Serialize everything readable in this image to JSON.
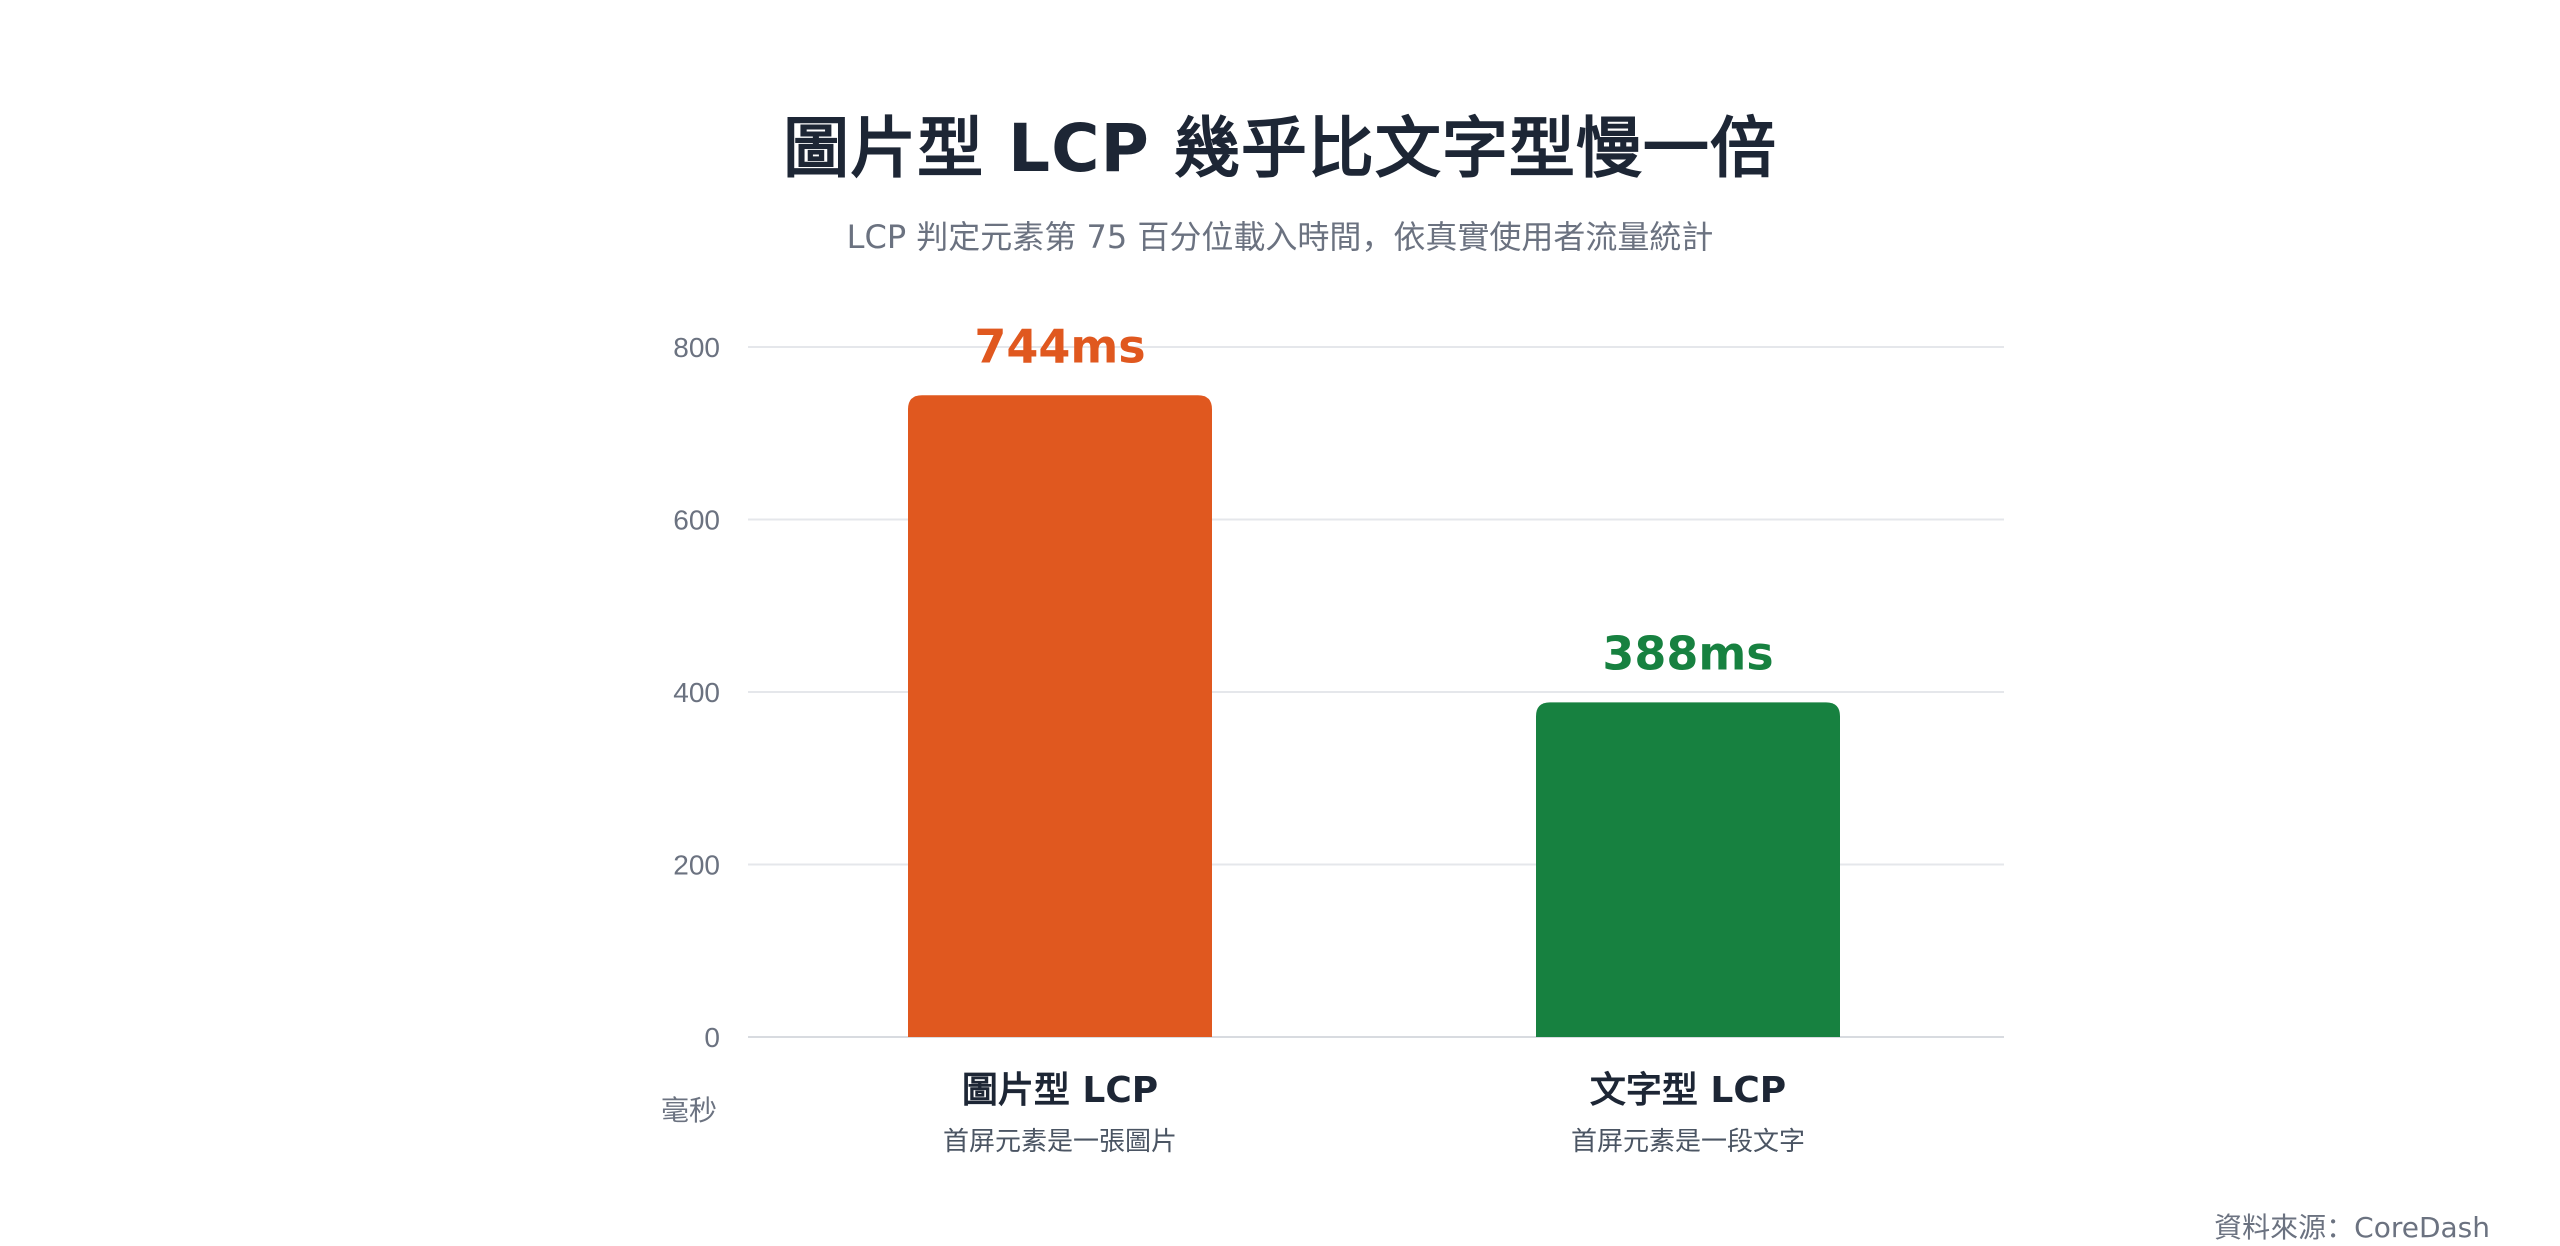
{
  "chart_data": {
    "type": "bar",
    "title": "圖片型 LCP 幾乎比文字型慢一倍",
    "subtitle": "LCP 判定元素第 75 百分位載入時間，依真實使用者流量統計",
    "categories": [
      "圖片型 LCP",
      "文字型 LCP"
    ],
    "category_descriptions": [
      "首屏元素是一張圖片",
      "首屏元素是一段文字"
    ],
    "values": [
      744,
      388
    ],
    "value_labels": [
      "744ms",
      "388ms"
    ],
    "colors": [
      "#e0581f",
      "#178140"
    ],
    "ylabel": "毫秒",
    "ylim": [
      0,
      800
    ],
    "yticks": [
      0,
      200,
      400,
      600,
      800
    ],
    "grid": true,
    "source": "資料來源：CoreDash"
  }
}
